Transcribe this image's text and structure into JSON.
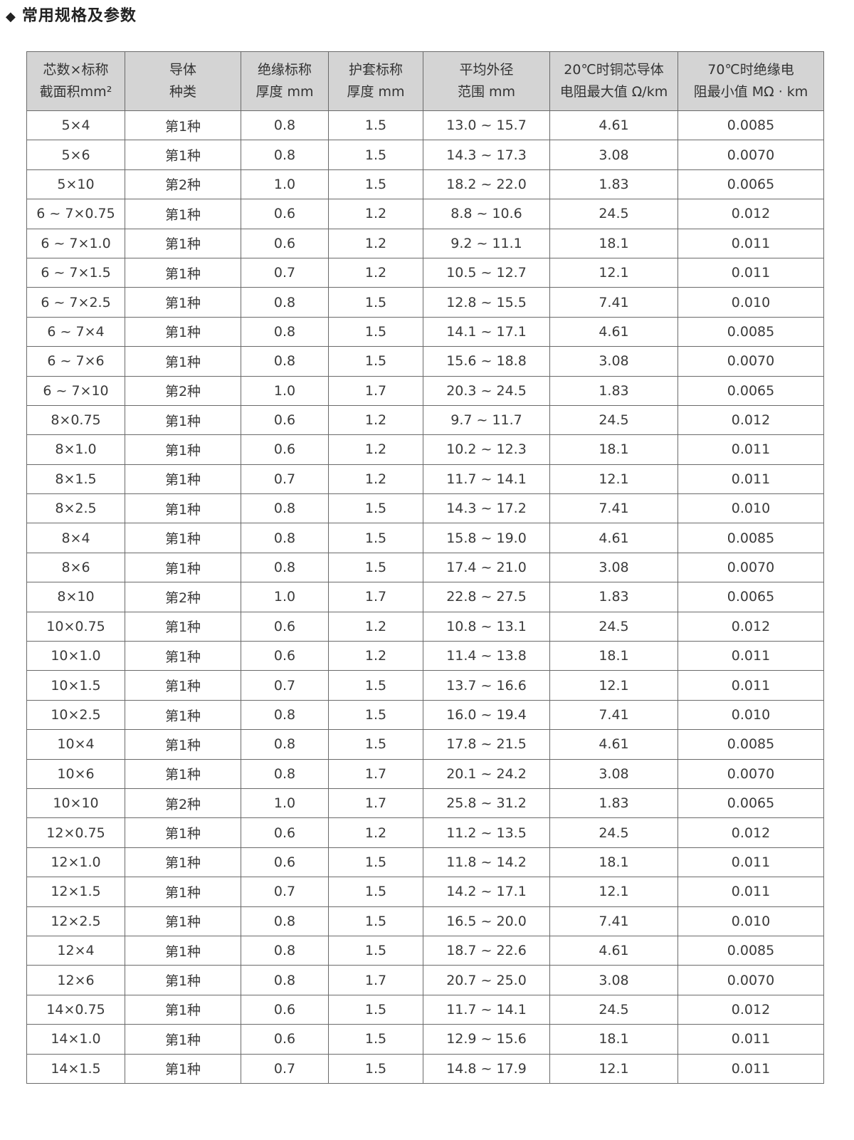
{
  "title": "常用规格及参数",
  "title_icon": "diamond-bullet",
  "colors": {
    "header_bg": "#d4d4d4",
    "border": "#6a6a6a",
    "text": "#3a3a3a"
  },
  "table": {
    "headers": [
      [
        "芯数×标称",
        "截面积mm²"
      ],
      [
        "导体",
        "种类"
      ],
      [
        "绝缘标称",
        "厚度 mm"
      ],
      [
        "护套标称",
        "厚度 mm"
      ],
      [
        "平均外径",
        "范围 mm"
      ],
      [
        "20℃时铜芯导体",
        "电阻最大值 Ω/km"
      ],
      [
        "70℃时绝缘电",
        "阻最小值 MΩ · km"
      ]
    ],
    "rows": [
      [
        "5×4",
        "第1种",
        "0.8",
        "1.5",
        "13.0 ~ 15.7",
        "4.61",
        "0.0085"
      ],
      [
        "5×6",
        "第1种",
        "0.8",
        "1.5",
        "14.3 ~ 17.3",
        "3.08",
        "0.0070"
      ],
      [
        "5×10",
        "第2种",
        "1.0",
        "1.5",
        "18.2 ~ 22.0",
        "1.83",
        "0.0065"
      ],
      [
        "6 ~ 7×0.75",
        "第1种",
        "0.6",
        "1.2",
        "8.8 ~ 10.6",
        "24.5",
        "0.012"
      ],
      [
        "6 ~ 7×1.0",
        "第1种",
        "0.6",
        "1.2",
        "9.2 ~ 11.1",
        "18.1",
        "0.011"
      ],
      [
        "6 ~ 7×1.5",
        "第1种",
        "0.7",
        "1.2",
        "10.5 ~ 12.7",
        "12.1",
        "0.011"
      ],
      [
        "6 ~ 7×2.5",
        "第1种",
        "0.8",
        "1.5",
        "12.8 ~ 15.5",
        "7.41",
        "0.010"
      ],
      [
        "6 ~ 7×4",
        "第1种",
        "0.8",
        "1.5",
        "14.1 ~ 17.1",
        "4.61",
        "0.0085"
      ],
      [
        "6 ~ 7×6",
        "第1种",
        "0.8",
        "1.5",
        "15.6 ~ 18.8",
        "3.08",
        "0.0070"
      ],
      [
        "6 ~ 7×10",
        "第2种",
        "1.0",
        "1.7",
        "20.3 ~ 24.5",
        "1.83",
        "0.0065"
      ],
      [
        "8×0.75",
        "第1种",
        "0.6",
        "1.2",
        "9.7 ~ 11.7",
        "24.5",
        "0.012"
      ],
      [
        "8×1.0",
        "第1种",
        "0.6",
        "1.2",
        "10.2 ~ 12.3",
        "18.1",
        "0.011"
      ],
      [
        "8×1.5",
        "第1种",
        "0.7",
        "1.2",
        "11.7 ~ 14.1",
        "12.1",
        "0.011"
      ],
      [
        "8×2.5",
        "第1种",
        "0.8",
        "1.5",
        "14.3 ~ 17.2",
        "7.41",
        "0.010"
      ],
      [
        "8×4",
        "第1种",
        "0.8",
        "1.5",
        "15.8 ~ 19.0",
        "4.61",
        "0.0085"
      ],
      [
        "8×6",
        "第1种",
        "0.8",
        "1.5",
        "17.4 ~ 21.0",
        "3.08",
        "0.0070"
      ],
      [
        "8×10",
        "第2种",
        "1.0",
        "1.7",
        "22.8 ~ 27.5",
        "1.83",
        "0.0065"
      ],
      [
        "10×0.75",
        "第1种",
        "0.6",
        "1.2",
        "10.8 ~ 13.1",
        "24.5",
        "0.012"
      ],
      [
        "10×1.0",
        "第1种",
        "0.6",
        "1.2",
        "11.4 ~ 13.8",
        "18.1",
        "0.011"
      ],
      [
        "10×1.5",
        "第1种",
        "0.7",
        "1.5",
        "13.7 ~ 16.6",
        "12.1",
        "0.011"
      ],
      [
        "10×2.5",
        "第1种",
        "0.8",
        "1.5",
        "16.0 ~ 19.4",
        "7.41",
        "0.010"
      ],
      [
        "10×4",
        "第1种",
        "0.8",
        "1.5",
        "17.8 ~ 21.5",
        "4.61",
        "0.0085"
      ],
      [
        "10×6",
        "第1种",
        "0.8",
        "1.7",
        "20.1 ~ 24.2",
        "3.08",
        "0.0070"
      ],
      [
        "10×10",
        "第2种",
        "1.0",
        "1.7",
        "25.8 ~ 31.2",
        "1.83",
        "0.0065"
      ],
      [
        "12×0.75",
        "第1种",
        "0.6",
        "1.2",
        "11.2 ~ 13.5",
        "24.5",
        "0.012"
      ],
      [
        "12×1.0",
        "第1种",
        "0.6",
        "1.5",
        "11.8 ~ 14.2",
        "18.1",
        "0.011"
      ],
      [
        "12×1.5",
        "第1种",
        "0.7",
        "1.5",
        "14.2 ~ 17.1",
        "12.1",
        "0.011"
      ],
      [
        "12×2.5",
        "第1种",
        "0.8",
        "1.5",
        "16.5 ~ 20.0",
        "7.41",
        "0.010"
      ],
      [
        "12×4",
        "第1种",
        "0.8",
        "1.5",
        "18.7 ~ 22.6",
        "4.61",
        "0.0085"
      ],
      [
        "12×6",
        "第1种",
        "0.8",
        "1.7",
        "20.7 ~ 25.0",
        "3.08",
        "0.0070"
      ],
      [
        "14×0.75",
        "第1种",
        "0.6",
        "1.5",
        "11.7 ~ 14.1",
        "24.5",
        "0.012"
      ],
      [
        "14×1.0",
        "第1种",
        "0.6",
        "1.5",
        "12.9 ~ 15.6",
        "18.1",
        "0.011"
      ],
      [
        "14×1.5",
        "第1种",
        "0.7",
        "1.5",
        "14.8 ~ 17.9",
        "12.1",
        "0.011"
      ]
    ]
  }
}
